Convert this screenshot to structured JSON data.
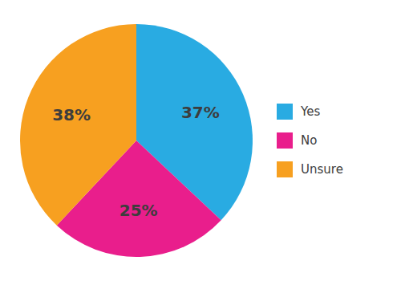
{
  "chart_data": {
    "type": "pie",
    "categories": [
      "Yes",
      "No",
      "Unsure"
    ],
    "values": [
      37,
      25,
      38
    ],
    "value_labels": [
      "37%",
      "25%",
      "38%"
    ],
    "colors": [
      "#29ABE2",
      "#E91E8C",
      "#F7A020"
    ],
    "data_labels": true,
    "legend": "right"
  }
}
